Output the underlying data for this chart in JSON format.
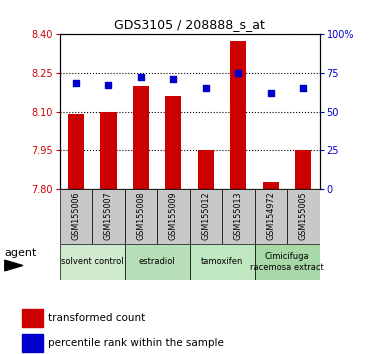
{
  "title": "GDS3105 / 208888_s_at",
  "samples": [
    "GSM155006",
    "GSM155007",
    "GSM155008",
    "GSM155009",
    "GSM155012",
    "GSM155013",
    "GSM154972",
    "GSM155005"
  ],
  "bar_values": [
    8.09,
    8.1,
    8.2,
    8.16,
    7.95,
    8.37,
    7.83,
    7.95
  ],
  "dot_values": [
    68,
    67,
    72,
    71,
    65,
    75,
    62,
    65
  ],
  "ylim_left": [
    7.8,
    8.4
  ],
  "yticks_left": [
    7.8,
    7.95,
    8.1,
    8.25,
    8.4
  ],
  "ylim_right": [
    0,
    100
  ],
  "yticks_right": [
    0,
    25,
    50,
    75,
    100
  ],
  "ytick_labels_right": [
    "0",
    "25",
    "50",
    "75",
    "100%"
  ],
  "groups": [
    {
      "label": "solvent control",
      "indices": [
        0,
        1
      ],
      "color": "#d0ead0"
    },
    {
      "label": "estradiol",
      "indices": [
        2,
        3
      ],
      "color": "#b8e0b8"
    },
    {
      "label": "tamoxifen",
      "indices": [
        4,
        5
      ],
      "color": "#c0e8c0"
    },
    {
      "label": "Cimicifuga\nracemosa extract",
      "indices": [
        6,
        7
      ],
      "color": "#a8d8a8"
    }
  ],
  "bar_color": "#cc0000",
  "dot_color": "#0000cc",
  "bar_width": 0.5,
  "agent_label": "agent",
  "legend_bar": "transformed count",
  "legend_dot": "percentile rank within the sample",
  "plot_bg": "#ffffff",
  "ylabel_left_color": "#cc0000",
  "ylabel_right_color": "#0000cc",
  "sample_box_color": "#c8c8c8",
  "title_fontsize": 9,
  "tick_fontsize": 7,
  "label_fontsize": 6.5
}
